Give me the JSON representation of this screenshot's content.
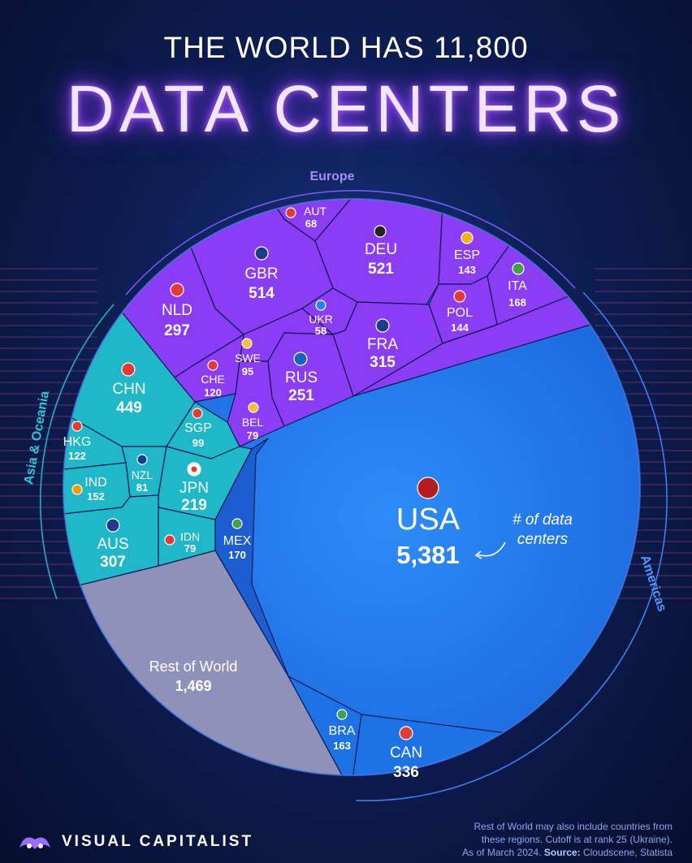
{
  "header": {
    "title_top": "THE WORLD HAS 11,800",
    "title_main": "DATA CENTERS"
  },
  "regions": {
    "europe": "Europe",
    "asia": "Asia & Oceania",
    "americas": "Americas"
  },
  "annotation": {
    "line1": "# of data",
    "line2": "centers"
  },
  "colors": {
    "europe": "#8a3df5",
    "asia": "#1fb8c9",
    "americas": "#1d72e6",
    "rest": "#8f92b8"
  },
  "chart_data": {
    "type": "voronoi-treemap",
    "title": "THE WORLD HAS 11,800 DATA CENTERS",
    "total": "11,800",
    "cells": [
      {
        "code": "USA",
        "value": "5,381",
        "region": "Americas"
      },
      {
        "code": "Rest of World",
        "value": "1,469",
        "region": "Rest of World"
      },
      {
        "code": "DEU",
        "value": "521",
        "region": "Europe"
      },
      {
        "code": "GBR",
        "value": "514",
        "region": "Europe"
      },
      {
        "code": "CHN",
        "value": "449",
        "region": "Asia & Oceania"
      },
      {
        "code": "CAN",
        "value": "336",
        "region": "Americas"
      },
      {
        "code": "FRA",
        "value": "315",
        "region": "Europe"
      },
      {
        "code": "AUS",
        "value": "307",
        "region": "Asia & Oceania"
      },
      {
        "code": "NLD",
        "value": "297",
        "region": "Europe"
      },
      {
        "code": "RUS",
        "value": "251",
        "region": "Europe"
      },
      {
        "code": "JPN",
        "value": "219",
        "region": "Asia & Oceania"
      },
      {
        "code": "MEX",
        "value": "170",
        "region": "Americas"
      },
      {
        "code": "ITA",
        "value": "168",
        "region": "Europe"
      },
      {
        "code": "BRA",
        "value": "163",
        "region": "Americas"
      },
      {
        "code": "IND",
        "value": "152",
        "region": "Asia & Oceania"
      },
      {
        "code": "POL",
        "value": "144",
        "region": "Europe"
      },
      {
        "code": "ESP",
        "value": "143",
        "region": "Europe"
      },
      {
        "code": "HKG",
        "value": "122",
        "region": "Asia & Oceania"
      },
      {
        "code": "CHE",
        "value": "120",
        "region": "Europe"
      },
      {
        "code": "SGP",
        "value": "99",
        "region": "Asia & Oceania"
      },
      {
        "code": "SWE",
        "value": "95",
        "region": "Europe"
      },
      {
        "code": "NZL",
        "value": "81",
        "region": "Asia & Oceania"
      },
      {
        "code": "IDN",
        "value": "79",
        "region": "Asia & Oceania"
      },
      {
        "code": "BEL",
        "value": "79",
        "region": "Europe"
      },
      {
        "code": "AUT",
        "value": "68",
        "region": "Europe"
      },
      {
        "code": "UKR",
        "value": "58",
        "region": "Europe"
      }
    ]
  },
  "footnote": {
    "line1": "Rest of World may also include countries from",
    "line2": "these regions. Cutoff is at rank 25 (Ukraine).",
    "line3_prefix": "As of March 2024.",
    "source_label": "Source:",
    "source": "Cloudscene, Statista"
  },
  "brand": {
    "name": "VISUAL CAPITALIST"
  }
}
